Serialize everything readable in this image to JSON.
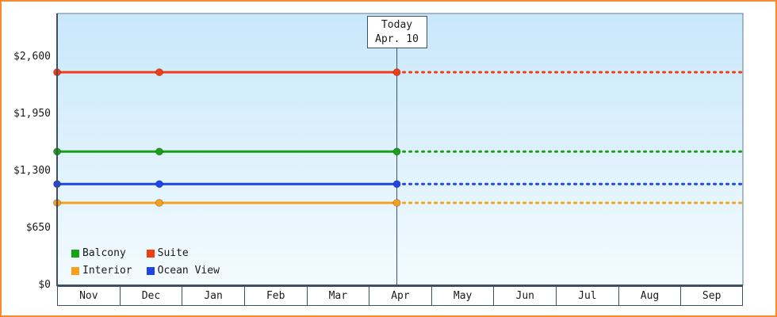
{
  "frame": {
    "border_color": "#FB8A28"
  },
  "chart_data": {
    "type": "line",
    "title": "",
    "x_categories": [
      "Nov",
      "Dec",
      "Jan",
      "Feb",
      "Mar",
      "Apr",
      "May",
      "Jun",
      "Jul",
      "Aug",
      "Sep"
    ],
    "y_ticks": [
      {
        "label": "$0",
        "value": 0
      },
      {
        "label": "$650",
        "value": 650
      },
      {
        "label": "$1,300",
        "value": 1300
      },
      {
        "label": "$1,950",
        "value": 1950
      },
      {
        "label": "$2,600",
        "value": 2600
      }
    ],
    "ylim": [
      0,
      3100
    ],
    "grid": false,
    "legend_position": "bottom-left",
    "today": {
      "line1": "Today",
      "line2": "Apr. 10",
      "month_index": 5.45
    },
    "observation_month_indices": [
      0,
      1.64,
      5.45
    ],
    "series": [
      {
        "name": "Balcony",
        "color": "#18A018",
        "value": 1525
      },
      {
        "name": "Suite",
        "color": "#F23C14",
        "value": 2430
      },
      {
        "name": "Interior",
        "color": "#F7A01D",
        "value": 940
      },
      {
        "name": "Ocean View",
        "color": "#1D45E8",
        "value": 1155
      }
    ],
    "axis_color": "#3D4F63",
    "plot_border_color": "#64788E",
    "plot_bg_top": "#C8E8FA",
    "plot_bg_bottom": "#F3FBFF"
  }
}
